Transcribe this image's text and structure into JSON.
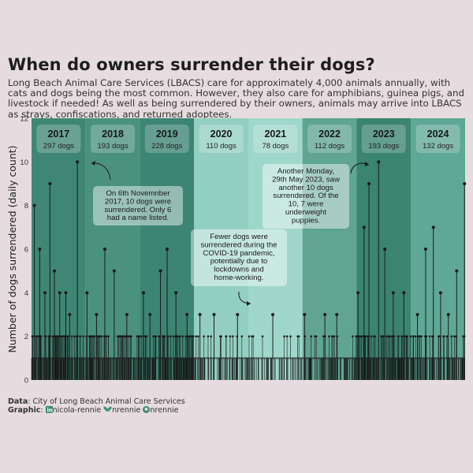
{
  "title": "When do owners surrender their dogs?",
  "subtitle": "Long Beach Animal Care Services (LBACS) care for approximately 4,000 animals annually, with cats and dogs being the most common. However, they also care for amphibians, guinea pigs, and livestock if needed! As well as being surrendered by their owners, animals may arrive into LBACS as strays, confiscations, and returned adoptees.",
  "caption": {
    "data_label": "Data",
    "data_text": ": City of Long Beach Animal Care Services",
    "graphic_label": "Graphic",
    "linkedin": "nicola-rennie",
    "bluesky": "nrennie",
    "github": "nrennie"
  },
  "colors": {
    "background": "#e6dbdf",
    "year_bands": [
      "#3f8774",
      "#4a917e",
      "#3c8573",
      "#93cfc1",
      "#9fd7ca",
      "#5fa592",
      "#3a8470",
      "#5fa895"
    ],
    "lollipop": "#1b1b1b",
    "label_box": "#ffffff"
  },
  "chart_data": {
    "type": "lollipop",
    "title": "When do owners surrender their dogs?",
    "ylabel": "Number of dogs surrendered (daily count)",
    "ylim": [
      0,
      12
    ],
    "yticks": [
      0,
      2,
      4,
      6,
      8,
      10,
      12
    ],
    "grid": false,
    "years": [
      {
        "year": "2017",
        "total": "297 dogs"
      },
      {
        "year": "2018",
        "total": "193 dogs"
      },
      {
        "year": "2019",
        "total": "228 dogs"
      },
      {
        "year": "2020",
        "total": "110 dogs"
      },
      {
        "year": "2021",
        "total": "78 dogs"
      },
      {
        "year": "2022",
        "total": "112 dogs"
      },
      {
        "year": "2023",
        "total": "193 dogs"
      },
      {
        "year": "2024",
        "total": "132 dogs"
      }
    ],
    "peaks": [
      {
        "date": "2017-01-20",
        "value": 8
      },
      {
        "date": "2017-02-25",
        "value": 6
      },
      {
        "date": "2017-04-01",
        "value": 4
      },
      {
        "date": "2017-05-05",
        "value": 9
      },
      {
        "date": "2017-06-04",
        "value": 5
      },
      {
        "date": "2017-07-10",
        "value": 4
      },
      {
        "date": "2017-08-20",
        "value": 4
      },
      {
        "date": "2017-09-15",
        "value": 3
      },
      {
        "date": "2017-11-06",
        "value": 10
      },
      {
        "date": "2018-01-10",
        "value": 4
      },
      {
        "date": "2018-03-15",
        "value": 3
      },
      {
        "date": "2018-05-10",
        "value": 6
      },
      {
        "date": "2018-07-12",
        "value": 5
      },
      {
        "date": "2018-10-05",
        "value": 3
      },
      {
        "date": "2019-01-25",
        "value": 4
      },
      {
        "date": "2019-03-10",
        "value": 3
      },
      {
        "date": "2019-05-20",
        "value": 5
      },
      {
        "date": "2019-07-04",
        "value": 6
      },
      {
        "date": "2019-09-01",
        "value": 4
      },
      {
        "date": "2019-11-15",
        "value": 3
      },
      {
        "date": "2020-02-10",
        "value": 3
      },
      {
        "date": "2020-05-15",
        "value": 3
      },
      {
        "date": "2020-10-20",
        "value": 3
      },
      {
        "date": "2021-06-15",
        "value": 3
      },
      {
        "date": "2022-01-15",
        "value": 3
      },
      {
        "date": "2022-06-01",
        "value": 3
      },
      {
        "date": "2022-08-20",
        "value": 3
      },
      {
        "date": "2023-01-10",
        "value": 4
      },
      {
        "date": "2023-02-20",
        "value": 7
      },
      {
        "date": "2023-03-25",
        "value": 9
      },
      {
        "date": "2023-05-29",
        "value": 10
      },
      {
        "date": "2023-07-10",
        "value": 6
      },
      {
        "date": "2023-09-05",
        "value": 4
      },
      {
        "date": "2023-11-15",
        "value": 4
      },
      {
        "date": "2024-02-15",
        "value": 3
      },
      {
        "date": "2024-04-10",
        "value": 6
      },
      {
        "date": "2024-06-01",
        "value": 7
      },
      {
        "date": "2024-07-20",
        "value": 4
      },
      {
        "date": "2024-09-10",
        "value": 3
      },
      {
        "date": "2024-11-05",
        "value": 5
      },
      {
        "date": "2024-12-28",
        "value": 9
      }
    ],
    "annotations": [
      {
        "text": "On 6th Novemnber 2017, 10 dogs were surrendered. Only 6 had a name listed."
      },
      {
        "text": "Fewer dogs were surrendered during the COVID-19 pandemic, potentially due to lockdowns and home-working."
      },
      {
        "text": "Another Monday, 29th May 2023, saw another 10 dogs surrendered. Of the 10, 7 were underweight puppies."
      }
    ]
  }
}
